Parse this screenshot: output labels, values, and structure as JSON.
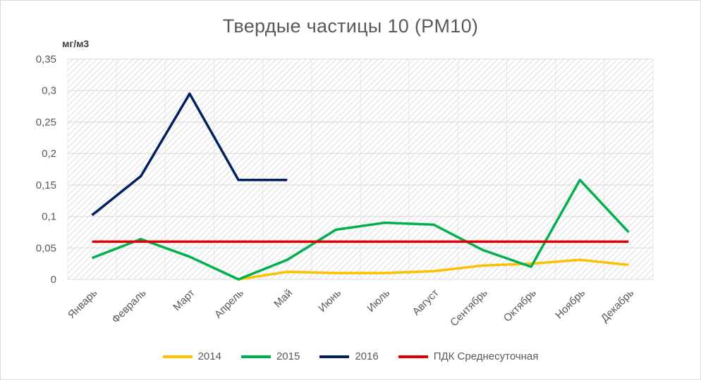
{
  "chart_data": {
    "type": "line",
    "title": "Твердые частицы 10 (PM10)",
    "ylabel": "мг/м3",
    "xlabel": "",
    "ylim": [
      0,
      0.35
    ],
    "yticks": [
      "0",
      "0,05",
      "0,1",
      "0,15",
      "0,2",
      "0,25",
      "0,3",
      "0,35"
    ],
    "ytick_values": [
      0,
      0.05,
      0.1,
      0.15,
      0.2,
      0.25,
      0.3,
      0.35
    ],
    "categories": [
      "Январь",
      "Февраль",
      "Март",
      "Апрель",
      "Май",
      "Июнь",
      "Июль",
      "Август",
      "Сентябрь",
      "Октябрь",
      "Ноябрь",
      "Декабрь"
    ],
    "grid": true,
    "legend_position": "bottom",
    "series": [
      {
        "name": "2014",
        "color": "#ffc000",
        "values": [
          null,
          null,
          null,
          0.0,
          0.012,
          0.01,
          0.01,
          0.013,
          0.022,
          0.025,
          0.031,
          0.023
        ]
      },
      {
        "name": "2015",
        "color": "#00b050",
        "values": [
          0.034,
          0.064,
          0.036,
          0.0,
          0.031,
          0.079,
          0.09,
          0.087,
          0.047,
          0.02,
          0.158,
          0.075
        ]
      },
      {
        "name": "2016",
        "color": "#002060",
        "values": [
          0.102,
          0.164,
          0.295,
          0.158,
          0.158,
          null,
          null,
          null,
          null,
          null,
          null,
          null
        ]
      },
      {
        "name": "ПДК Среднесуточная",
        "color": "#e00000",
        "values": [
          0.06,
          0.06,
          0.06,
          0.06,
          0.06,
          0.06,
          0.06,
          0.06,
          0.06,
          0.06,
          0.06,
          0.06
        ]
      }
    ]
  }
}
